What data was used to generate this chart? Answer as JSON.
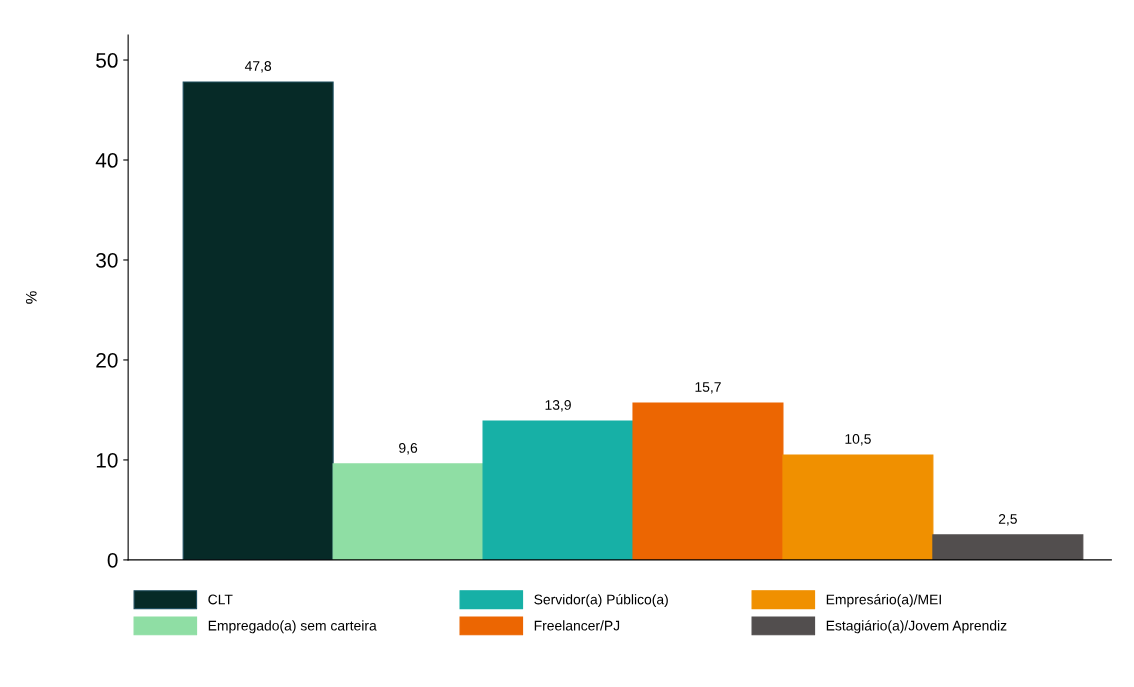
{
  "chart_data": {
    "type": "bar",
    "ylabel": "%",
    "categories": [
      null
    ],
    "series": [
      {
        "name": "CLT",
        "color": "#062a27",
        "values": [
          47.8
        ],
        "value_labels": [
          "47,8"
        ]
      },
      {
        "name": "Empregado(a) sem carteira",
        "color": "#8fdea4",
        "values": [
          9.6
        ],
        "value_labels": [
          "9,6"
        ]
      },
      {
        "name": "Servidor(a) Público(a)",
        "color": "#17b0a6",
        "values": [
          13.9
        ],
        "value_labels": [
          "13,9"
        ]
      },
      {
        "name": "Freelancer/PJ",
        "color": "#ec6602",
        "values": [
          15.7
        ],
        "value_labels": [
          "15,7"
        ]
      },
      {
        "name": "Empresário(a)/MEI",
        "color": "#f09000",
        "values": [
          10.5
        ],
        "value_labels": [
          "10,5"
        ]
      },
      {
        "name": "Estagiário(a)/Jovem Aprendiz",
        "color": "#524e4e",
        "values": [
          2.5
        ],
        "value_labels": [
          "2,5"
        ]
      }
    ],
    "ylim": [
      0,
      52.5
    ],
    "yticks": [
      0,
      10,
      20,
      30,
      40,
      50
    ],
    "grid": false,
    "legend": "bottom"
  }
}
